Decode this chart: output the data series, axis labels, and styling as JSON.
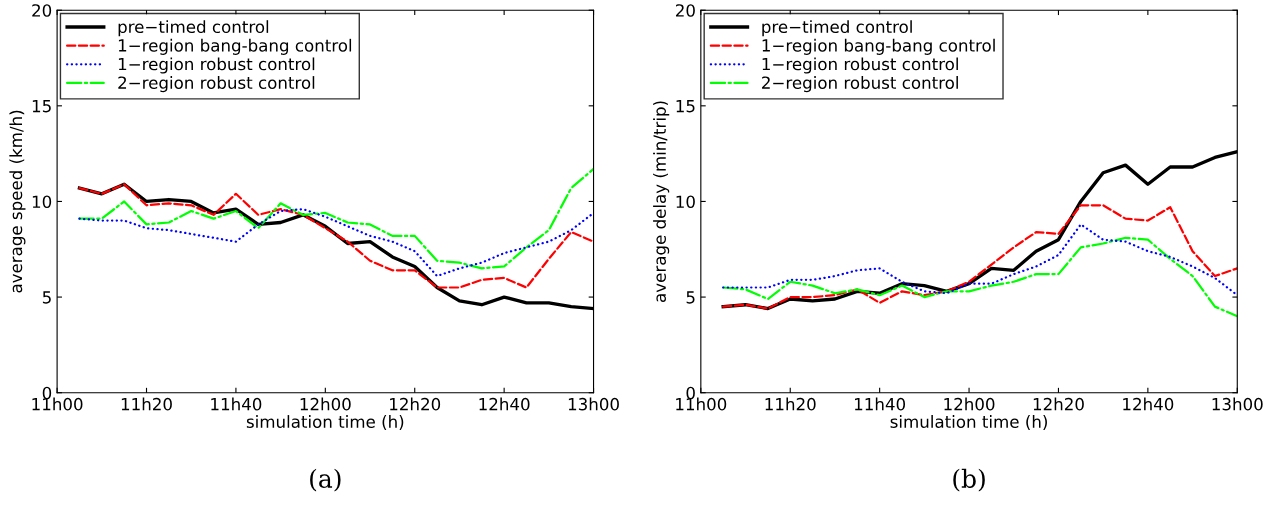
{
  "chart_data": [
    {
      "type": "line",
      "title": "(a)",
      "xlabel": "simulation time (h)",
      "ylabel": "average speed (km/h)",
      "categories": [
        "11h00",
        null,
        null,
        null,
        "11h20",
        null,
        null,
        null,
        "11h40",
        null,
        null,
        null,
        "12h00",
        null,
        null,
        null,
        "12h20",
        null,
        null,
        null,
        "12h40",
        null,
        null,
        null,
        "13h00"
      ],
      "ylim": [
        0,
        20
      ],
      "yticks": [
        0,
        5,
        10,
        15,
        20
      ],
      "grid": false,
      "legend": "top left",
      "series": [
        {
          "name": "pre−timed control",
          "color": "#000000",
          "line_style": "solid",
          "values": [
            null,
            10.7,
            10.4,
            10.9,
            10.0,
            10.1,
            10.0,
            9.4,
            9.6,
            8.8,
            8.9,
            9.3,
            8.7,
            7.8,
            7.9,
            7.1,
            6.6,
            5.5,
            4.8,
            4.6,
            5.0,
            4.7,
            4.7,
            4.5,
            4.4
          ]
        },
        {
          "name": "1−region bang-bang control",
          "color": "#ff0000",
          "line_style": "dashed",
          "values": [
            null,
            10.7,
            10.4,
            10.9,
            9.8,
            9.9,
            9.8,
            9.3,
            10.4,
            9.3,
            9.6,
            9.3,
            8.6,
            7.9,
            6.9,
            6.4,
            6.4,
            5.5,
            5.5,
            5.9,
            6.0,
            5.5,
            7.0,
            8.4,
            7.9
          ]
        },
        {
          "name": "1−region robust control",
          "color": "#0000ff",
          "line_style": "dotted",
          "values": [
            null,
            9.1,
            9.0,
            9.0,
            8.6,
            8.5,
            8.3,
            8.1,
            7.9,
            8.8,
            9.5,
            9.6,
            9.2,
            8.7,
            8.2,
            7.9,
            7.4,
            6.1,
            6.5,
            6.8,
            7.3,
            7.6,
            7.9,
            8.5,
            9.4
          ]
        },
        {
          "name": "2−region robust control",
          "color": "#00ff00",
          "line_style": "dashdot",
          "values": [
            null,
            9.1,
            9.1,
            10.0,
            8.8,
            8.9,
            9.5,
            9.1,
            9.5,
            8.6,
            9.9,
            9.3,
            9.4,
            8.9,
            8.8,
            8.2,
            8.2,
            6.9,
            6.8,
            6.5,
            6.6,
            7.6,
            8.5,
            10.7,
            11.7
          ]
        }
      ]
    },
    {
      "type": "line",
      "title": "(b)",
      "xlabel": "simulation time (h)",
      "ylabel": "average delay (min/trip)",
      "categories": [
        "11h00",
        null,
        null,
        null,
        "11h20",
        null,
        null,
        null,
        "11h40",
        null,
        null,
        null,
        "12h00",
        null,
        null,
        null,
        "12h20",
        null,
        null,
        null,
        "12h40",
        null,
        null,
        null,
        "13h00"
      ],
      "ylim": [
        0,
        20
      ],
      "yticks": [
        0,
        5,
        10,
        15,
        20
      ],
      "grid": false,
      "legend": "top left",
      "series": [
        {
          "name": "pre−timed control",
          "color": "#000000",
          "line_style": "solid",
          "values": [
            null,
            4.5,
            4.6,
            4.4,
            4.9,
            4.8,
            4.9,
            5.3,
            5.2,
            5.7,
            5.6,
            5.3,
            5.7,
            6.5,
            6.4,
            7.4,
            8.0,
            10.0,
            11.5,
            11.9,
            10.9,
            11.8,
            11.8,
            12.3,
            12.6
          ]
        },
        {
          "name": "1−region bang-bang control",
          "color": "#ff0000",
          "line_style": "dashed",
          "values": [
            null,
            4.5,
            4.6,
            4.4,
            5.0,
            5.0,
            5.1,
            5.4,
            4.7,
            5.3,
            5.1,
            5.3,
            5.8,
            6.7,
            7.6,
            8.4,
            8.3,
            9.8,
            9.8,
            9.1,
            9.0,
            9.7,
            7.4,
            6.1,
            6.5
          ]
        },
        {
          "name": "1−region robust control",
          "color": "#0000ff",
          "line_style": "dotted",
          "values": [
            null,
            5.5,
            5.5,
            5.5,
            5.9,
            5.9,
            6.1,
            6.4,
            6.5,
            5.8,
            5.3,
            5.2,
            5.7,
            5.7,
            6.2,
            6.6,
            7.2,
            8.8,
            8.0,
            7.9,
            7.4,
            7.1,
            6.6,
            6.0,
            5.1
          ]
        },
        {
          "name": "2−region robust control",
          "color": "#00ff00",
          "line_style": "dashdot",
          "values": [
            null,
            5.5,
            5.4,
            4.9,
            5.8,
            5.6,
            5.2,
            5.4,
            5.1,
            5.6,
            5.0,
            5.3,
            5.3,
            5.6,
            5.8,
            6.2,
            6.2,
            7.6,
            7.8,
            8.1,
            8.0,
            7.0,
            6.1,
            4.5,
            4.0
          ]
        }
      ]
    }
  ]
}
